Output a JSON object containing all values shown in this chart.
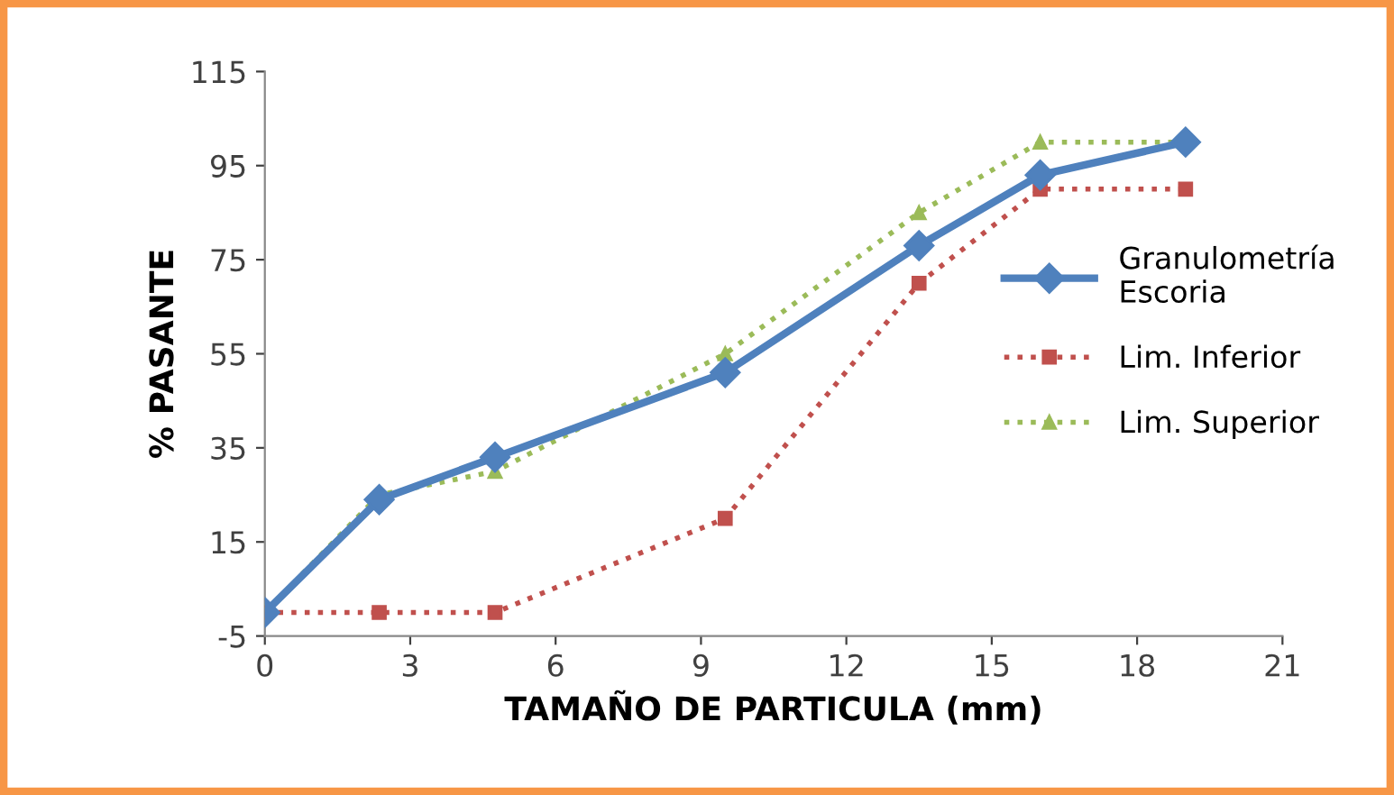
{
  "chart_data": {
    "type": "line",
    "xlabel": "TAMAÑO DE PARTICULA (mm)",
    "ylabel": "% PASANTE",
    "x": [
      0,
      2.36,
      4.75,
      9.5,
      13.5,
      16,
      19
    ],
    "xlim": [
      0,
      21
    ],
    "xticks": [
      0,
      3,
      6,
      9,
      12,
      15,
      18,
      21
    ],
    "ylim": [
      -5,
      115
    ],
    "yticks": [
      -5,
      15,
      35,
      55,
      75,
      95,
      115
    ],
    "grid": false,
    "legend": "right",
    "series": [
      {
        "name": "Granulometría\nEscoria",
        "color": "#4f81bd",
        "marker": "diamond",
        "line_style": "solid",
        "values": [
          0,
          24,
          33,
          51,
          78,
          93,
          100
        ]
      },
      {
        "name": "Lim. Inferior",
        "color": "#c0504d",
        "marker": "square",
        "line_style": "dotted",
        "values": [
          0,
          0,
          0,
          20,
          70,
          90,
          90
        ]
      },
      {
        "name": "Lim. Superior",
        "color": "#9bbb59",
        "marker": "triangle",
        "line_style": "dotted",
        "values": [
          0,
          25,
          30,
          55,
          85,
          100,
          100
        ]
      }
    ]
  }
}
